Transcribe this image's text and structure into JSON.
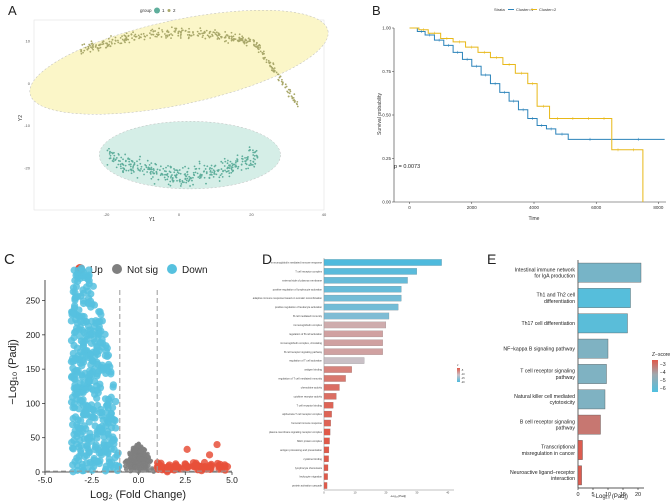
{
  "panels": {
    "a": {
      "letter": "A"
    },
    "b": {
      "letter": "B"
    },
    "c": {
      "letter": "C"
    },
    "d": {
      "letter": "D"
    },
    "e": {
      "letter": "E"
    }
  },
  "chart_data": [
    {
      "id": "A",
      "type": "scatter",
      "title": "",
      "xlabel": "Y1",
      "ylabel": "Y2",
      "legend_title": "group",
      "legend": [
        "1",
        "2"
      ],
      "colors": {
        "1": "#5fae9c",
        "2": "#a9a86a"
      },
      "xlim": [
        -40,
        40
      ],
      "ylim": [
        -30,
        15
      ],
      "x_ticks": [
        -20,
        0,
        20,
        40
      ],
      "y_ticks": [
        10,
        0,
        -10,
        -20
      ],
      "ellipses": [
        {
          "group": "2",
          "color": "#fbf6c8",
          "cx": 0,
          "cy": 5,
          "rx": 42,
          "ry": 10,
          "angle": -12
        },
        {
          "group": "1",
          "color": "#d5eee7",
          "cx": 3,
          "cy": -17,
          "rx": 25,
          "ry": 8,
          "angle": 0
        }
      ]
    },
    {
      "id": "B",
      "type": "line",
      "title": "",
      "xlabel": "Time",
      "ylabel": "Survival probability",
      "legend_title": "Strata",
      "legend": [
        "Cluster=1",
        "Cluster=2"
      ],
      "colors": {
        "Cluster=1": "#2b83ba",
        "Cluster=2": "#e8b818"
      },
      "xlim": [
        -500,
        8500
      ],
      "ylim": [
        0,
        1
      ],
      "x_ticks": [
        0,
        2000,
        4000,
        6000,
        8000
      ],
      "y_ticks": [
        0.0,
        0.25,
        0.5,
        0.75,
        1.0
      ],
      "annotation": "p = 0.0073",
      "series": [
        {
          "name": "Cluster=1",
          "x": [
            0,
            250,
            500,
            800,
            1100,
            1400,
            1700,
            2000,
            2300,
            2600,
            2900,
            3200,
            3500,
            3800,
            4100,
            4400,
            4700,
            5100,
            6500,
            8200
          ],
          "y": [
            1.0,
            0.98,
            0.96,
            0.93,
            0.9,
            0.86,
            0.82,
            0.78,
            0.73,
            0.68,
            0.63,
            0.58,
            0.53,
            0.48,
            0.44,
            0.42,
            0.39,
            0.36,
            0.36,
            0.36
          ]
        },
        {
          "name": "Cluster=2",
          "x": [
            0,
            300,
            600,
            1000,
            1400,
            1800,
            2200,
            2600,
            3000,
            3400,
            3800,
            4100,
            4500,
            5000,
            5500,
            6000,
            6500,
            6900,
            7500
          ],
          "y": [
            1.0,
            0.99,
            0.97,
            0.94,
            0.92,
            0.89,
            0.86,
            0.83,
            0.79,
            0.74,
            0.68,
            0.55,
            0.48,
            0.48,
            0.48,
            0.48,
            0.3,
            0.3,
            0.0
          ]
        }
      ]
    },
    {
      "id": "C",
      "type": "scatter",
      "title": "",
      "xlabel": "Log₂ (Fold Change)",
      "ylabel": "−Log₁₀ (Padj)",
      "legend": [
        "Up",
        "Not sig",
        "Down"
      ],
      "colors": {
        "Up": "#e8503a",
        "Not sig": "#7f7f7f",
        "Down": "#56c1df"
      },
      "xlim": [
        -5.0,
        5.0
      ],
      "ylim": [
        0,
        280
      ],
      "x_ticks": [
        -5.0,
        -2.5,
        0.0,
        2.5,
        5.0
      ],
      "y_ticks": [
        0,
        50,
        100,
        150,
        200,
        250
      ],
      "thresholds": {
        "x": [
          -1,
          1
        ],
        "y": 1.3
      }
    },
    {
      "id": "D",
      "type": "bar",
      "title": "",
      "xlabel": "-Log₁₀(Padj)",
      "ylabel": "",
      "categories": [
        "immunoglobulin mediated immune response",
        "T cell receptor complex",
        "external side of plasma membrane",
        "positive regulation of lymphocyte activation",
        "adaptive immune response based on somatic recombination",
        "positive regulation of leukocyte activation",
        "B cell mediated immunity",
        "immunoglobulin complex",
        "regulation of B cell activation",
        "immunoglobulin complex, circulating",
        "B cell receptor signaling pathway",
        "regulation of T cell activation",
        "antigen binding",
        "regulation of T cell mediated immunity",
        "chemokine activity",
        "cytokine receptor activity",
        "T cell receptor binding",
        "alpha-beta T cell receptor complex",
        "humoral immune response",
        "plasma membrane signaling receptor complex",
        "MHC protein complex",
        "antigen processing and presentation",
        "cytokine binding",
        "lymphocyte chemotaxis",
        "leukocyte migration",
        "protein activation cascade"
      ],
      "values": [
        38,
        30,
        27,
        25,
        25,
        24,
        21,
        20,
        19,
        19,
        19,
        13,
        9,
        7,
        5,
        4,
        3,
        2.5,
        2.2,
        2,
        1.8,
        1.6,
        1.5,
        1.3,
        1.2,
        1.0
      ],
      "color_values": [
        -22,
        -21,
        -20,
        -20,
        -19,
        -19,
        -18,
        -10,
        -9,
        -9,
        -9,
        -12,
        -6,
        -5,
        -4,
        -4,
        -3,
        -3,
        -3,
        -2,
        -2,
        -2,
        -2,
        -2,
        -2,
        -2
      ],
      "xlim": [
        0,
        42
      ],
      "x_ticks": [
        0,
        10,
        20,
        30,
        40
      ],
      "legend_title": "z",
      "legend": [
        "-5",
        "-10",
        "-15",
        "-20"
      ]
    },
    {
      "id": "E",
      "type": "bar",
      "title": "",
      "xlabel": "−Log₁₀ (Padj)",
      "ylabel": "",
      "categories": [
        "Intestinal immune network for IgA production",
        "Th1 and Th2 cell differentiation",
        "Th17 cell differentiation",
        "NF−kappa B signaling pathway",
        "T cell receptor signaling pathway",
        "Natural killer cell mediated cytotoxicity",
        "B cell receptor signaling pathway",
        "Transcriptional misregulation in cancer",
        "Neuroactive ligand−receptor interaction"
      ],
      "values": [
        21,
        17.5,
        16.5,
        10,
        9.5,
        9,
        7.5,
        1.5,
        1.2
      ],
      "z_scores": [
        -5.4,
        -6.3,
        -6.2,
        -5.2,
        -5.2,
        -5.2,
        -3.2,
        -2.6,
        -2.6
      ],
      "xlim": [
        0,
        22
      ],
      "x_ticks": [
        0,
        5,
        10,
        15,
        20
      ],
      "legend_title": "Z−score",
      "legend": [
        "−3",
        "−4",
        "−5",
        "−6"
      ]
    }
  ]
}
